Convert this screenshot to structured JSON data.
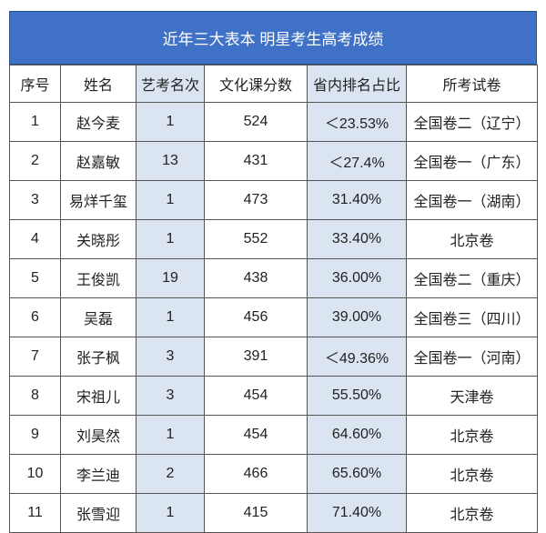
{
  "title": "近年三大表本 明星考生高考成绩",
  "headers": [
    "序号",
    "姓名",
    "艺考名次",
    "文化课分数",
    "省内排名占比",
    "所考试卷"
  ],
  "rows": [
    [
      "1",
      "赵今麦",
      "1",
      "524",
      "＜23.53%",
      "全国卷二（辽宁）"
    ],
    [
      "2",
      "赵嘉敏",
      "13",
      "431",
      "＜27.4%",
      "全国卷一（广东）"
    ],
    [
      "3",
      "易烊千玺",
      "1",
      "473",
      "31.40%",
      "全国卷一（湖南）"
    ],
    [
      "4",
      "关晓彤",
      "1",
      "552",
      "33.40%",
      "北京卷"
    ],
    [
      "5",
      "王俊凯",
      "19",
      "438",
      "36.00%",
      "全国卷二（重庆）"
    ],
    [
      "6",
      "吴磊",
      "1",
      "456",
      "39.00%",
      "全国卷三（四川）"
    ],
    [
      "7",
      "张子枫",
      "3",
      "391",
      "＜49.36%",
      "全国卷一（河南）"
    ],
    [
      "8",
      "宋祖儿",
      "3",
      "454",
      "55.50%",
      "天津卷"
    ],
    [
      "9",
      "刘昊然",
      "1",
      "454",
      "64.60%",
      "北京卷"
    ],
    [
      "10",
      "李兰迪",
      "2",
      "466",
      "65.60%",
      "北京卷"
    ],
    [
      "11",
      "张雪迎",
      "1",
      "415",
      "71.40%",
      "北京卷"
    ]
  ],
  "colors": {
    "title_bg": "#3f72c6",
    "highlight_col": "#dbe4f1"
  }
}
